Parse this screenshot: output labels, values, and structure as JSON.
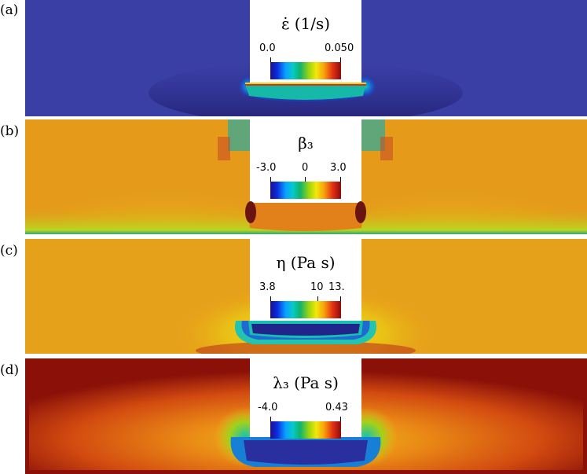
{
  "panels": [
    {
      "label": "(a)",
      "title": "ε̇ (1/s)",
      "colorbar": {
        "ticks": [
          "0.0",
          "0.050"
        ]
      }
    },
    {
      "label": "(b)",
      "title": "β₃",
      "colorbar": {
        "ticks": [
          "-3.0",
          "0",
          "3.0"
        ]
      }
    },
    {
      "label": "(c)",
      "title": "η (Pa s)",
      "colorbar": {
        "ticks": [
          "3.8",
          "10",
          "13."
        ]
      }
    },
    {
      "label": "(d)",
      "title": "λ₃ (Pa s)",
      "colorbar": {
        "ticks": [
          "-4.0",
          "0.43"
        ]
      }
    }
  ],
  "colors": {
    "a_background": "#3b3fa3",
    "b_background": "#e59a1a",
    "c_background": "#e9a118",
    "d_background": "#cf4a10",
    "d_edge": "#8a1008"
  }
}
